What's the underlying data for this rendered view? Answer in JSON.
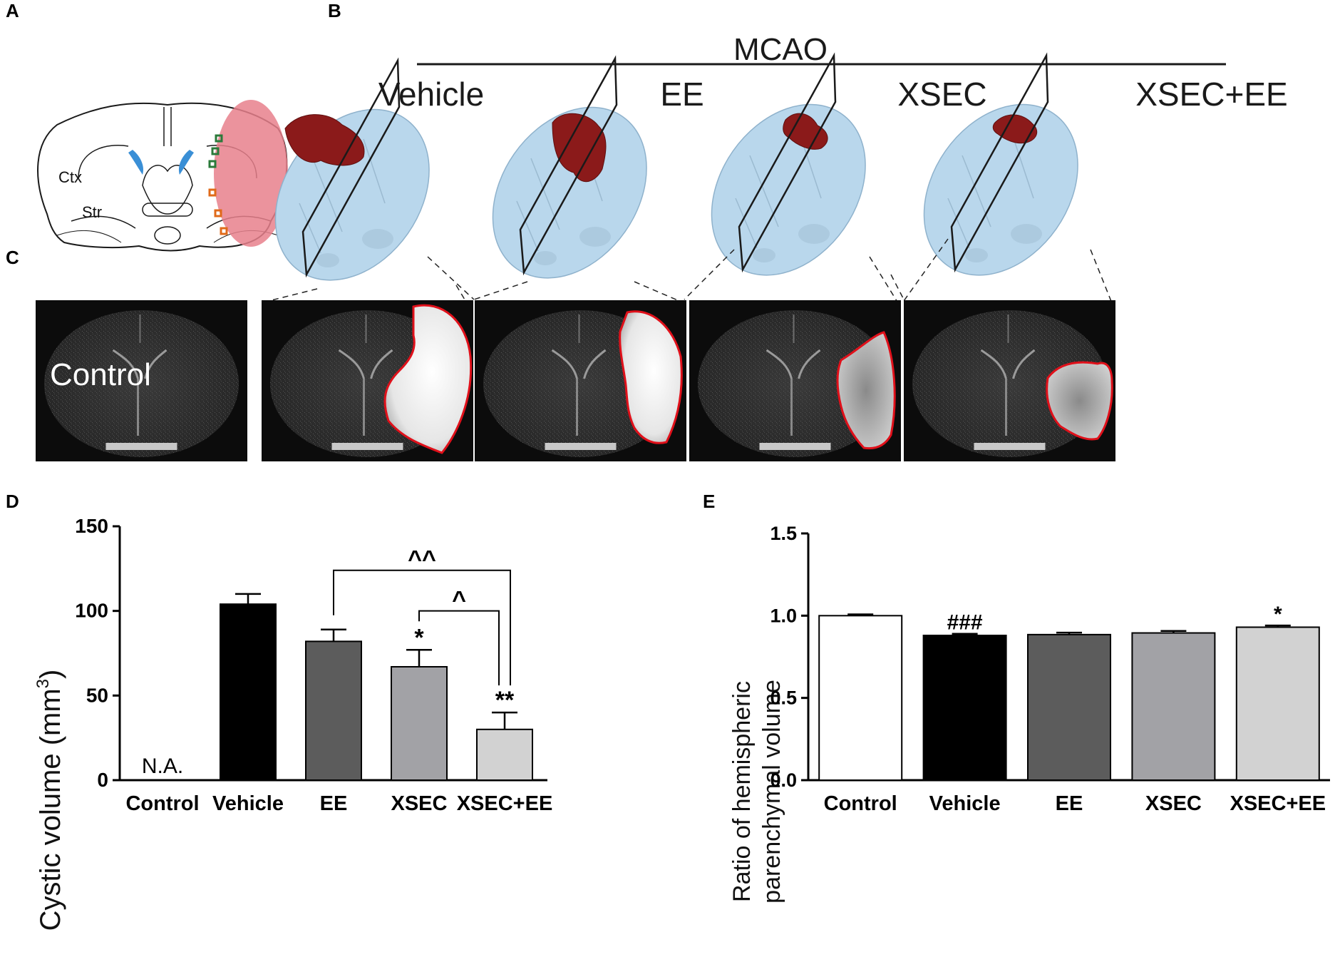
{
  "panels": {
    "a": "A",
    "b": "B",
    "c": "C",
    "d": "D",
    "e": "E"
  },
  "schematic": {
    "ctx_label": "Ctx",
    "str_label": "Str"
  },
  "mcao": {
    "label": "MCAO",
    "groups": [
      "Vehicle",
      "EE",
      "XSEC",
      "XSEC+EE"
    ]
  },
  "mri": {
    "control_label": "Control"
  },
  "colors": {
    "infarct": "#8b1a1a",
    "brain3d": "#b9d7ec",
    "outline": "#e0101a",
    "lesion_pink": "#e8808c",
    "ventricle": "#3a8fd6"
  },
  "chart_data": [
    {
      "type": "bar",
      "title": "",
      "ylabel": "Cystic volume (mm³)",
      "ylabel_text": "Cystic volume (mm",
      "ylabel_sup": "3",
      "ylabel_end": ")",
      "ylim": [
        0,
        150
      ],
      "yticks": [
        "0",
        "50",
        "100",
        "150"
      ],
      "categories": [
        "Control",
        "Vehicle",
        "EE",
        "XSEC",
        "XSEC+EE"
      ],
      "values": [
        null,
        104,
        82,
        67,
        30
      ],
      "errors": [
        null,
        6,
        7,
        10,
        10
      ],
      "bar_colors": [
        "#ffffff",
        "#000000",
        "#5c5c5c",
        "#a2a2a6",
        "#d2d2d2"
      ],
      "labels": [
        "N.A.",
        "",
        "",
        "*",
        "**"
      ],
      "brackets": [
        {
          "from": "EE",
          "to": "XSEC+EE",
          "label": "^^"
        },
        {
          "from": "XSEC",
          "to": "XSEC+EE",
          "label": "^"
        }
      ]
    },
    {
      "type": "bar",
      "title": "",
      "ylabel_line1": "Ratio of hemispheric",
      "ylabel_line2": "parenchymal volume",
      "ylim": [
        0,
        1.5
      ],
      "yticks": [
        "0.0",
        "0.5",
        "1.0",
        "1.5"
      ],
      "categories": [
        "Control",
        "Vehicle",
        "EE",
        "XSEC",
        "XSEC+EE"
      ],
      "values": [
        1.0,
        0.88,
        0.885,
        0.895,
        0.93
      ],
      "errors": [
        0.008,
        0.01,
        0.012,
        0.012,
        0.01
      ],
      "bar_colors": [
        "#ffffff",
        "#000000",
        "#5c5c5c",
        "#a2a2a6",
        "#d2d2d2"
      ],
      "labels": [
        "",
        "###",
        "",
        "",
        "*"
      ]
    }
  ]
}
